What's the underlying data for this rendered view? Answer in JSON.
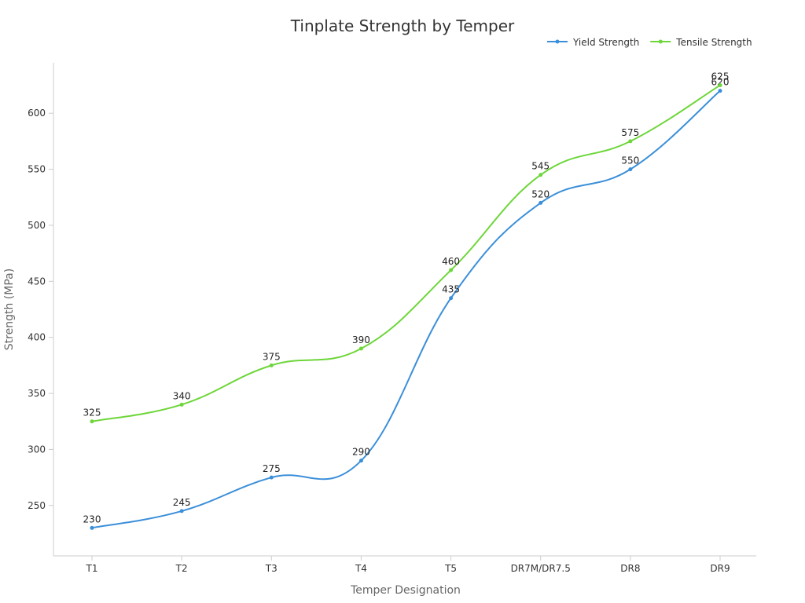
{
  "chart_data": {
    "type": "line",
    "title": "Tinplate Strength by Temper",
    "xlabel": "Temper Designation",
    "ylabel": "Strength (MPa)",
    "categories": [
      "T1",
      "T2",
      "T3",
      "T4",
      "T5",
      "DR7M/DR7.5",
      "DR8",
      "DR9"
    ],
    "ylim": [
      205,
      645
    ],
    "yticks": [
      250,
      300,
      350,
      400,
      450,
      500,
      550,
      600
    ],
    "grid": false,
    "legend_position": "top-right",
    "series": [
      {
        "name": "Yield Strength",
        "color": "#3b8fd9",
        "values": [
          230,
          245,
          275,
          290,
          435,
          520,
          550,
          620
        ]
      },
      {
        "name": "Tensile Strength",
        "color": "#6dd63a",
        "values": [
          325,
          340,
          375,
          390,
          460,
          545,
          575,
          625
        ]
      }
    ]
  }
}
